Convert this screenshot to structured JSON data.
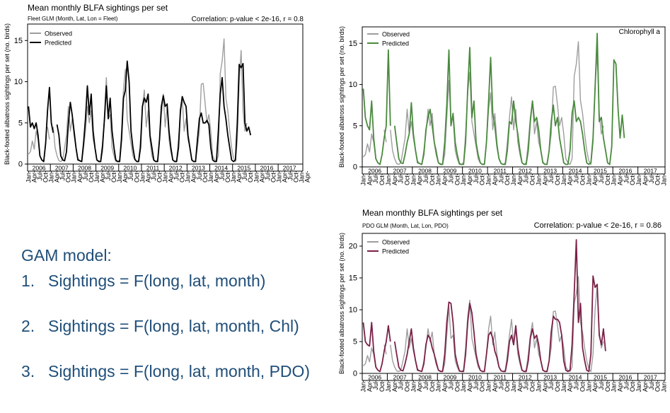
{
  "chart_data": [
    {
      "type": "line",
      "title": "Mean monthly BLFA sightings per set",
      "subtitle": "Fleet GLM (Month, Lat,  Lon = Fleet)",
      "annotation": "Correlation: p-value  < 2e-16, r = 0.8",
      "ylabel": "Black-footed albatross sightings per set (no. birds)",
      "xlabel": "",
      "ylim": [
        0,
        17
      ],
      "yticks": [
        0,
        5,
        10,
        15
      ],
      "years": [
        "2006",
        "2007",
        "2008",
        "2009",
        "2010",
        "2011",
        "2012",
        "2013",
        "2014",
        "2015",
        "2016",
        "2017"
      ],
      "month_ticks": [
        "Jan",
        "Apr",
        "Jul",
        "Oct"
      ],
      "months_per_year_end": "Jan",
      "legend_position": "top-left",
      "grid": false,
      "series": [
        {
          "name": "Observed",
          "color": "#9e9e9e",
          "values": [
            1.2,
            1.5,
            2.8,
            1.8,
            4,
            3,
            1,
            0.5,
            0.3,
            null,
            4.5,
            3,
            null,
            4.5,
            2,
            1,
            0.4,
            0.3,
            0.5,
            2,
            3.5,
            7,
            4,
            5.5,
            3.5,
            2,
            0.7,
            0.4,
            0.3,
            2,
            4,
            7,
            5,
            6.5,
            3,
            2,
            0.5,
            0.4,
            0.3,
            1.5,
            6,
            10.5,
            5.5,
            6,
            2,
            1,
            0.3,
            0.3,
            0.5,
            4,
            9,
            11.5,
            5.5,
            4,
            2.5,
            1,
            0.5,
            0.3,
            0.4,
            3,
            7,
            9,
            4.5,
            6.5,
            3,
            1,
            0.4,
            0.3,
            0.5,
            3,
            6,
            8.5,
            4.5,
            7,
            3,
            1.5,
            0.5,
            0.3,
            0.5,
            3,
            6,
            8,
            4,
            5.5,
            3,
            2,
            0.6,
            0.3,
            0.4,
            2,
            4,
            9.7,
            9.8,
            7.5,
            5,
            6,
            4,
            1,
            0.5,
            0.3,
            1,
            11,
            12.5,
            15.2,
            8,
            6.5,
            4,
            2,
            0.7,
            0.3,
            3,
            10,
            13.8,
            6.5,
            4,
            5,
            null,
            null,
            null
          ]
        },
        {
          "name": "Predicted",
          "color": "#000000",
          "values": [
            7,
            4.5,
            5,
            4.3,
            5,
            3.5,
            1,
            0.5,
            0.3,
            2.5,
            6.5,
            9.3,
            5,
            3.8,
            null,
            4.8,
            3.5,
            1,
            0.5,
            0.4,
            1.5,
            5,
            7.5,
            6,
            4,
            2,
            0.5,
            0.4,
            0.3,
            2.5,
            5.5,
            9.5,
            6,
            8.5,
            4,
            2,
            0.5,
            0.3,
            0.3,
            2.3,
            5.5,
            9.5,
            5.5,
            8,
            4,
            2,
            0.5,
            0.3,
            0.3,
            3,
            8,
            9,
            12.5,
            10,
            4,
            2,
            0.6,
            0.3,
            0.3,
            2,
            7,
            8,
            7.5,
            8.5,
            3.5,
            2,
            0.5,
            0.3,
            0.3,
            3,
            7,
            8.3,
            7,
            7.3,
            4,
            2,
            0.5,
            0.3,
            0.3,
            2,
            6.5,
            8.2,
            7.5,
            7,
            3.5,
            2,
            0.5,
            0.3,
            0.3,
            3,
            5.5,
            6.2,
            5,
            5,
            5.3,
            4.8,
            2,
            0.5,
            0.3,
            0.3,
            4,
            8.5,
            10.5,
            7,
            5.5,
            3.5,
            2,
            0.5,
            0.3,
            0.5,
            5,
            12.1,
            11.7,
            12.2,
            5,
            4,
            4.5,
            3.5,
            null,
            null,
            null
          ]
        }
      ]
    },
    {
      "type": "line",
      "title": "",
      "subtitle": "",
      "annotation": "Chlorophyll a",
      "ylabel": "Black-footed albatross sightings per set (no. birds)",
      "xlabel": "",
      "ylim": [
        0,
        17
      ],
      "yticks": [
        0,
        5,
        10,
        15
      ],
      "years": [
        "2006",
        "2007",
        "2008",
        "2009",
        "2010",
        "2011",
        "2012",
        "2013",
        "2014",
        "2015",
        "2016",
        "2017"
      ],
      "month_ticks": [
        "Jan",
        "Apr",
        "Jul",
        "Oct"
      ],
      "months_per_year_end": "Jan",
      "legend_position": "top-left",
      "grid": false,
      "series": [
        {
          "name": "Observed",
          "color": "#9e9e9e",
          "values": [
            1.2,
            1.5,
            2.8,
            1.8,
            4,
            3,
            1,
            0.5,
            0.3,
            null,
            4.5,
            3,
            null,
            4.5,
            2,
            1,
            0.4,
            0.3,
            0.5,
            2,
            3.5,
            7,
            4,
            5.5,
            3.5,
            2,
            0.7,
            0.4,
            0.3,
            2,
            4,
            7,
            5,
            6.5,
            3,
            2,
            0.5,
            0.4,
            0.3,
            1.5,
            6,
            10.5,
            5.5,
            6,
            2,
            1,
            0.3,
            0.3,
            0.5,
            4,
            9,
            11.5,
            5.5,
            4,
            2.5,
            1,
            0.5,
            0.3,
            0.4,
            3,
            7,
            9,
            4.5,
            6.5,
            3,
            1,
            0.4,
            0.3,
            0.5,
            3,
            6,
            8.5,
            4.5,
            7,
            3,
            1.5,
            0.5,
            0.3,
            0.5,
            3,
            6,
            8,
            4,
            5.5,
            3,
            2,
            0.6,
            0.3,
            0.4,
            2,
            4,
            9.7,
            9.8,
            7.5,
            5,
            6,
            4,
            1,
            0.5,
            0.3,
            1,
            11,
            12.5,
            15.2,
            8,
            6.5,
            4,
            2,
            0.7,
            0.3,
            3,
            10,
            13.8,
            6.5,
            4,
            5,
            null,
            null,
            null
          ]
        },
        {
          "name": "Predicted",
          "color": "#4a8a3e",
          "values": [
            9.5,
            6,
            5,
            4.5,
            8,
            3.5,
            1,
            0.5,
            0.3,
            1.5,
            3.5,
            5,
            14.2,
            5,
            null,
            5,
            3,
            1,
            0.5,
            0.4,
            1.5,
            3,
            4,
            7.8,
            4,
            2,
            0.5,
            0.4,
            0.3,
            1.5,
            4.5,
            6,
            7,
            5,
            3,
            1.5,
            0.5,
            0.3,
            0.3,
            3,
            7.5,
            14.2,
            5,
            6.5,
            3,
            1.5,
            0.4,
            0.3,
            0.3,
            3,
            9.5,
            14.5,
            6,
            8,
            3,
            1.5,
            0.5,
            0.3,
            0.3,
            3,
            8,
            13.3,
            6.5,
            5,
            2.5,
            1,
            0.4,
            0.3,
            0.3,
            2,
            5.5,
            5.2,
            8,
            5.5,
            4,
            2,
            0.5,
            0.3,
            0.3,
            2,
            5.5,
            8,
            5.5,
            6,
            4.5,
            2,
            0.5,
            0.3,
            0.3,
            2,
            5.5,
            7.5,
            5,
            6,
            3.5,
            2,
            0.5,
            0.3,
            0.3,
            2,
            6.5,
            8,
            5.5,
            6,
            5.5,
            4,
            2,
            0.5,
            0.3,
            0.5,
            3.5,
            9.5,
            16.2,
            5.5,
            6,
            3.5,
            2,
            0.5,
            0.3,
            2.5,
            13,
            12.5,
            7,
            3.5,
            6.3,
            3.5,
            null,
            null,
            null
          ]
        }
      ]
    },
    {
      "type": "line",
      "title": "Mean monthly BLFA sightings per set",
      "subtitle": "PDO GLM (Month, Lat,  Lon, PDO)",
      "annotation": "Correlation: p-value  < 2e-16, r = 0.86",
      "ylabel": "Black-footed albatross sightings per set (no. birds)",
      "xlabel": "",
      "ylim": [
        0,
        22
      ],
      "yticks": [
        0,
        5,
        10,
        15,
        20
      ],
      "years": [
        "2006",
        "2007",
        "2008",
        "2009",
        "2010",
        "2011",
        "2012",
        "2013",
        "2014",
        "2015",
        "2016",
        "2017"
      ],
      "month_ticks": [
        "Jan",
        "Apr",
        "Jul",
        "Oct"
      ],
      "months_per_year_end": "Jan",
      "legend_position": "top-left",
      "grid": false,
      "series": [
        {
          "name": "Observed",
          "color": "#9e9e9e",
          "values": [
            1.2,
            1.5,
            2.8,
            1.8,
            4,
            3,
            1,
            0.5,
            0.3,
            null,
            4.5,
            3,
            null,
            4.5,
            2,
            1,
            0.4,
            0.3,
            0.5,
            2,
            3.5,
            7,
            4,
            5.5,
            3.5,
            2,
            0.7,
            0.4,
            0.3,
            2,
            4,
            7,
            5,
            6.5,
            3,
            2,
            0.5,
            0.4,
            0.3,
            1.5,
            6,
            10.5,
            5.5,
            6,
            2,
            1,
            0.3,
            0.3,
            0.5,
            4,
            9,
            11.5,
            5.5,
            4,
            2.5,
            1,
            0.5,
            0.3,
            0.4,
            3,
            7,
            9,
            4.5,
            6.5,
            3,
            1,
            0.4,
            0.3,
            0.5,
            3,
            6,
            8.5,
            4.5,
            7,
            3,
            1.5,
            0.5,
            0.3,
            0.5,
            3,
            6,
            8,
            4,
            5.5,
            3,
            2,
            0.6,
            0.3,
            0.4,
            2,
            4,
            9.7,
            9.8,
            7.5,
            5,
            6,
            4,
            1,
            0.5,
            0.3,
            1,
            11,
            12.5,
            15.2,
            8,
            6.5,
            4,
            2,
            0.7,
            0.3,
            3,
            10,
            13.8,
            6.5,
            4,
            5,
            null,
            null,
            null
          ]
        },
        {
          "name": "Predicted",
          "color": "#7a2148",
          "values": [
            8,
            5,
            4.5,
            4.3,
            8,
            3.5,
            1,
            0.5,
            0.3,
            1.5,
            3.5,
            5,
            7.5,
            5,
            null,
            5,
            3,
            1,
            0.5,
            0.4,
            1.5,
            3,
            5,
            7,
            4,
            2,
            0.5,
            0.4,
            0.3,
            1.5,
            4.5,
            6,
            5.5,
            4,
            3,
            1.5,
            0.5,
            0.3,
            0.3,
            3,
            8,
            11.2,
            11,
            8,
            3,
            1.5,
            0.4,
            0.3,
            0.3,
            3,
            8,
            11,
            9.5,
            6.5,
            3,
            1.5,
            0.5,
            0.3,
            0.3,
            3,
            6,
            6.5,
            5.5,
            3.5,
            2.5,
            1,
            0.4,
            0.3,
            0.3,
            2,
            5,
            6,
            4.5,
            7.5,
            4,
            2,
            0.5,
            0.3,
            0.3,
            2,
            5.5,
            7,
            5.5,
            6,
            4.5,
            2,
            0.5,
            0.3,
            0.3,
            2,
            6.5,
            9,
            8.5,
            8.5,
            8,
            6,
            2,
            0.5,
            0.3,
            0.5,
            4.5,
            12.5,
            21,
            8,
            11,
            4,
            2,
            0.5,
            0.3,
            3,
            15.3,
            13.5,
            14,
            6,
            4.5,
            7,
            3.5,
            null,
            null,
            null
          ]
        }
      ]
    }
  ],
  "gam": {
    "title": "GAM model:",
    "items": [
      {
        "num": "1.",
        "text": "Sightings = F(long, lat, month)"
      },
      {
        "num": "2.",
        "text": "Sightings = F(long, lat, month, Chl)"
      },
      {
        "num": "3.",
        "text": "Sightings = F(long, lat, month, PDO)"
      }
    ]
  }
}
